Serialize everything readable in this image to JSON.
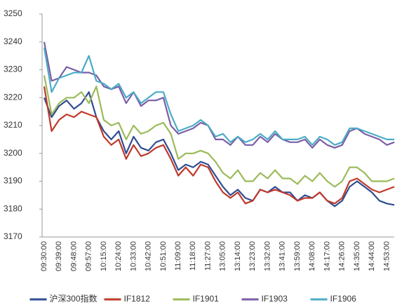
{
  "chart_data": {
    "type": "line",
    "categories": [
      "09:30:00",
      null,
      "09:39:00",
      null,
      "09:48:00",
      null,
      "09:57:00",
      null,
      "10:15:00",
      null,
      "10:24:00",
      null,
      "10:33:00",
      null,
      "10:42:00",
      null,
      "10:51:00",
      null,
      "11:09:00",
      null,
      "11:18:00",
      null,
      "11:27:00",
      null,
      "13:05:00",
      null,
      "13:14:00",
      null,
      "13:23:00",
      null,
      "13:32:00",
      null,
      "13:41:00",
      null,
      "13:59:00",
      null,
      "14:08:00",
      null,
      "14:17:00",
      null,
      "14:26:00",
      null,
      "14:35:00",
      null,
      "14:44:00",
      null,
      "14:53:00",
      null
    ],
    "series": [
      {
        "name": "沪深300指数",
        "color": "#2f4d93",
        "values": [
          3220,
          3213,
          3217,
          3219,
          3216,
          3218,
          3222,
          3213,
          3208,
          3205,
          3208,
          3200,
          3206,
          3202,
          3201,
          3204,
          3205,
          3200,
          3194,
          3196,
          3195,
          3197,
          3196,
          3192,
          3188,
          3185,
          3187,
          3184,
          3183,
          3187,
          3186,
          3188,
          3186,
          3186,
          3183,
          3185,
          3184,
          3186,
          3183,
          3181,
          3183,
          3188,
          3190,
          3188,
          3186,
          3183,
          3182,
          3181.5
        ]
      },
      {
        "name": "IF1812",
        "color": "#c0392b",
        "values": [
          3224,
          3208,
          3212,
          3214,
          3213,
          3215,
          3214,
          3213,
          3206,
          3203,
          3205,
          3198,
          3203,
          3199,
          3200,
          3202,
          3203,
          3198,
          3192,
          3195,
          3192,
          3196,
          3195,
          3190,
          3186,
          3184,
          3186,
          3182,
          3183,
          3187,
          3186,
          3187,
          3186,
          3185,
          3183,
          3184,
          3184,
          3186,
          3183,
          3182,
          3184,
          3190,
          3191,
          3189,
          3187,
          3186,
          3187,
          3188
        ]
      },
      {
        "name": "IF1901",
        "color": "#9bbb59",
        "values": [
          3228,
          3214,
          3218,
          3220,
          3220,
          3222,
          3218,
          3224,
          3212,
          3210,
          3211,
          3205,
          3210,
          3207,
          3208,
          3210,
          3211,
          3207,
          3198,
          3200,
          3200,
          3201,
          3200,
          3197,
          3193,
          3191,
          3194,
          3190,
          3190,
          3193,
          3191,
          3194,
          3191,
          3191,
          3189,
          3192,
          3190,
          3193,
          3190,
          3188,
          3190,
          3195,
          3195,
          3193,
          3190,
          3190,
          3190,
          3191
        ]
      },
      {
        "name": "IF1903",
        "color": "#7b5ea7",
        "values": [
          3240,
          3226,
          3227,
          3231,
          3230,
          3229,
          3229,
          3228,
          3224,
          3223,
          3224,
          3218,
          3222,
          3217,
          3219,
          3219,
          3220,
          3210,
          3207,
          3208,
          3209,
          3211,
          3210,
          3205,
          3205,
          3203,
          3206,
          3203,
          3203,
          3206,
          3204,
          3207,
          3205,
          3204,
          3204,
          3205,
          3202,
          3205,
          3203,
          3202,
          3203,
          3208,
          3209,
          3207,
          3206,
          3205,
          3203,
          3204
        ]
      },
      {
        "name": "IF1906",
        "color": "#4bacc6",
        "values": [
          3238,
          3222,
          3227,
          3228,
          3229,
          3229,
          3235,
          3226,
          3225,
          3223,
          3225,
          3220,
          3222,
          3218,
          3220,
          3222,
          3222,
          3214,
          3208,
          3209,
          3210,
          3212,
          3210,
          3206,
          3207,
          3204,
          3206,
          3204,
          3205,
          3207,
          3205,
          3208,
          3205,
          3205,
          3205,
          3206,
          3203,
          3206,
          3205,
          3203,
          3204,
          3209,
          3209,
          3208,
          3207,
          3206,
          3205,
          3205
        ]
      }
    ],
    "ylim": [
      3170,
      3250
    ],
    "yticks": [
      3170,
      3180,
      3190,
      3200,
      3210,
      3220,
      3230,
      3240,
      3250
    ],
    "grid": false,
    "legend": "bottom"
  }
}
